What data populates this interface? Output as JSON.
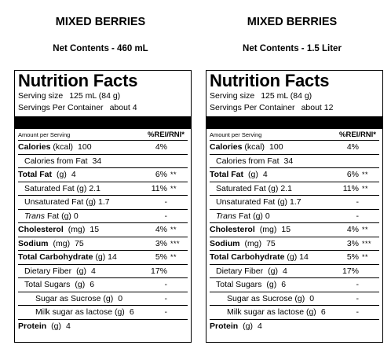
{
  "panels": [
    {
      "product": "MIXED BERRIES",
      "net_contents": "Net Contents - 460 mL",
      "title": "Nutrition Facts",
      "serving_size_label": "Serving size",
      "serving_size_value": "125 mL  (84 g)",
      "servings_label": "Servings Per Container",
      "servings_value": "about 4",
      "header_left": "Amount per Serving",
      "header_right": "%REI/RNI*",
      "rows": [
        {
          "name": "Calories",
          "unit": "(kcal)",
          "amount": "100",
          "dv": "4%",
          "star": ""
        },
        {
          "name": "Calories from Fat",
          "unit": "",
          "amount": "34",
          "dv": "",
          "star": ""
        },
        {
          "name": "Total Fat",
          "unit": "(g)",
          "amount": "4",
          "dv": "6%",
          "star": "**"
        },
        {
          "name": "Saturated Fat",
          "unit": "(g)",
          "amount": "2.1",
          "dv": "11%",
          "star": "**"
        },
        {
          "name": "Unsaturated Fat",
          "unit": "(g)",
          "amount": "1.7",
          "dv": "-",
          "star": ""
        },
        {
          "name": "Trans",
          "name_suffix": "Fat",
          "unit": "(g)",
          "amount": "0",
          "dv": "-",
          "star": ""
        },
        {
          "name": "Cholesterol",
          "unit": "(mg)",
          "amount": "15",
          "dv": "4%",
          "star": "**"
        },
        {
          "name": "Sodium",
          "unit": "(mg)",
          "amount": "75",
          "dv": "3%",
          "star": "***"
        },
        {
          "name": "Total Carbohydrate",
          "unit": "(g)",
          "amount": "14",
          "dv": "5%",
          "star": "**"
        },
        {
          "name": "Dietary Fiber",
          "unit": "(g)",
          "amount": "4",
          "dv": "17%",
          "star": ""
        },
        {
          "name": "Total Sugars",
          "unit": "(g)",
          "amount": "6",
          "dv": "-",
          "star": ""
        },
        {
          "name": "Sugar as Sucrose",
          "unit": "(g)",
          "amount": "0",
          "dv": "-",
          "star": ""
        },
        {
          "name": "Milk sugar as lactose",
          "unit": "(g)",
          "amount": "6",
          "dv": "-",
          "star": ""
        },
        {
          "name": "Protein",
          "unit": "(g)",
          "amount": "4",
          "dv": "",
          "star": ""
        }
      ]
    },
    {
      "product": "MIXED BERRIES",
      "net_contents": "Net Contents - 1.5 Liter",
      "title": "Nutrition Facts",
      "serving_size_label": "Serving size",
      "serving_size_value": "125 mL  (84 g)",
      "servings_label": "Servings Per Container",
      "servings_value": "about 12",
      "header_left": "Amount per Serving",
      "header_right": "%REI/RNI*",
      "rows": [
        {
          "name": "Calories",
          "unit": "(kcal)",
          "amount": "100",
          "dv": "4%",
          "star": ""
        },
        {
          "name": "Calories from Fat",
          "unit": "",
          "amount": "34",
          "dv": "",
          "star": ""
        },
        {
          "name": "Total Fat",
          "unit": "(g)",
          "amount": "4",
          "dv": "6%",
          "star": "**"
        },
        {
          "name": "Saturated Fat",
          "unit": "(g)",
          "amount": "2.1",
          "dv": "11%",
          "star": "**"
        },
        {
          "name": "Unsaturated Fat",
          "unit": "(g)",
          "amount": "1.7",
          "dv": "-",
          "star": ""
        },
        {
          "name": "Trans",
          "name_suffix": "Fat",
          "unit": "(g)",
          "amount": "0",
          "dv": "-",
          "star": ""
        },
        {
          "name": "Cholesterol",
          "unit": "(mg)",
          "amount": "15",
          "dv": "4%",
          "star": "**"
        },
        {
          "name": "Sodium",
          "unit": "(mg)",
          "amount": "75",
          "dv": "3%",
          "star": "***"
        },
        {
          "name": "Total Carbohydrate",
          "unit": "(g)",
          "amount": "14",
          "dv": "5%",
          "star": "**"
        },
        {
          "name": "Dietary Fiber",
          "unit": "(g)",
          "amount": "4",
          "dv": "17%",
          "star": ""
        },
        {
          "name": "Total Sugars",
          "unit": "(g)",
          "amount": "6",
          "dv": "-",
          "star": ""
        },
        {
          "name": "Sugar as Sucrose",
          "unit": "(g)",
          "amount": "0",
          "dv": "-",
          "star": ""
        },
        {
          "name": "Milk sugar as lactose",
          "unit": "(g)",
          "amount": "6",
          "dv": "-",
          "star": ""
        },
        {
          "name": "Protein",
          "unit": "(g)",
          "amount": "4",
          "dv": "",
          "star": ""
        }
      ]
    }
  ]
}
